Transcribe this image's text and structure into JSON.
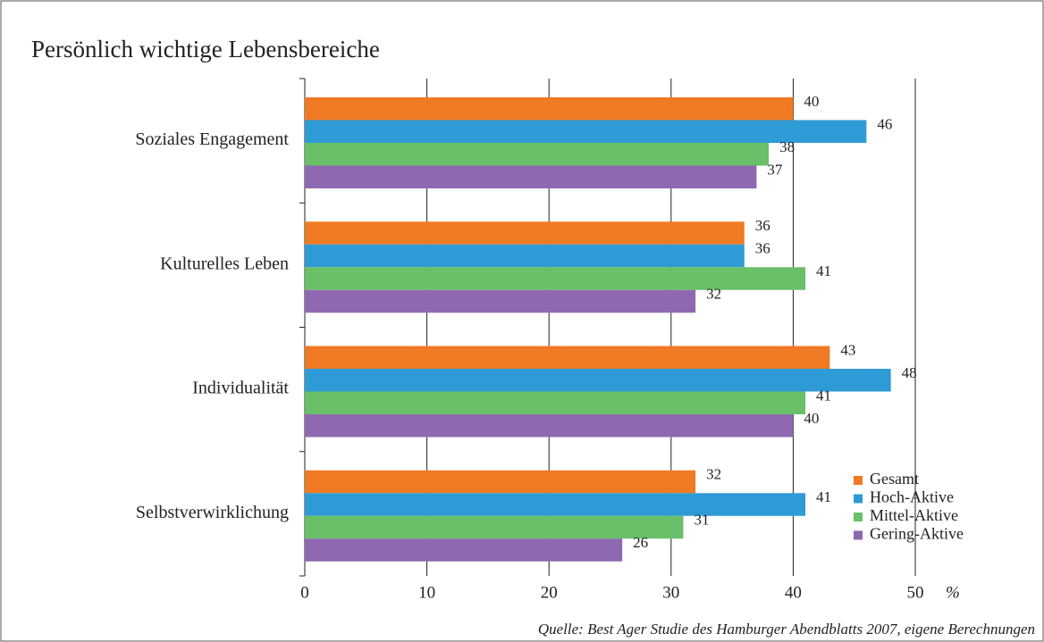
{
  "chart_data": {
    "type": "bar",
    "orientation": "horizontal",
    "title": "Persönlich wichtige Lebensbereiche",
    "categories": [
      "Soziales Engagement",
      "Kulturelles Leben",
      "Individualität",
      "Selbstverwirklichung"
    ],
    "series": [
      {
        "name": "Gesamt",
        "color": "#f07a23",
        "values": [
          40,
          36,
          43,
          32
        ]
      },
      {
        "name": "Hoch-Aktive",
        "color": "#2e9bd6",
        "values": [
          46,
          36,
          48,
          41
        ]
      },
      {
        "name": "Mittel-Aktive",
        "color": "#6abf69",
        "values": [
          38,
          41,
          41,
          31
        ]
      },
      {
        "name": "Gering-Aktive",
        "color": "#8e68b0",
        "values": [
          37,
          32,
          40,
          26
        ]
      }
    ],
    "xlim": [
      0,
      50
    ],
    "xticks": [
      0,
      10,
      20,
      30,
      40,
      50
    ],
    "xlabel": "%",
    "grid": true,
    "legend": "lower right",
    "source": "Quelle: Best Ager Studie des Hamburger Abendblatts 2007, eigene Berechnungen"
  }
}
